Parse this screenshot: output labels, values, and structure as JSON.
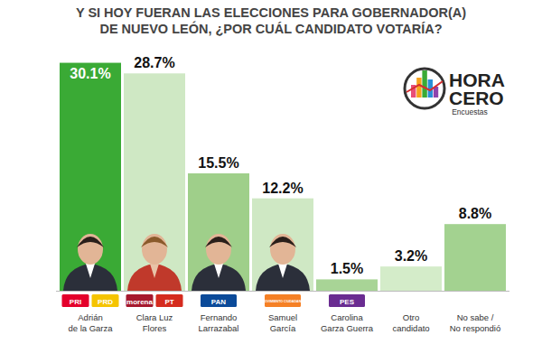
{
  "chart_data": {
    "type": "bar",
    "title": "Y SI HOY FUERAN LAS ELECCIONES PARA GOBERNADOR(A)\nDE NUEVO LEÓN, ¿POR CUÁL CANDIDATO VOTARÍA?",
    "categories": [
      "Adrián\nde la Garza",
      "Clara Luz\nFlores",
      "Fernando\nLarrazabal",
      "Samuel\nGarcía",
      "Carolina\nGarza Guerra",
      "Otro\ncandidato",
      "No sabe /\nNo respondió"
    ],
    "values": [
      30.1,
      28.7,
      15.5,
      12.2,
      1.5,
      3.2,
      8.8
    ],
    "value_labels": [
      "30.1%",
      "28.7%",
      "15.5%",
      "12.2%",
      "1.5%",
      "3.2%",
      "8.8%"
    ],
    "colors": [
      "#3aaa35",
      "#cfe8c4",
      "#9fcf8a",
      "#cfe8c4",
      "#a8d496",
      "#d4ecc9",
      "#a3d290"
    ],
    "ylim": [
      0,
      31
    ],
    "data_labels": true,
    "tick_labels": false,
    "grid": false,
    "parties": [
      [
        {
          "label": "PRI",
          "color": "#e4002b"
        },
        {
          "label": "PRD",
          "color": "#f5c400"
        }
      ],
      [
        {
          "label": "morena",
          "color": "#a6192e"
        },
        {
          "label": "PT",
          "color": "#d52b1e"
        }
      ],
      [
        {
          "label": "PAN",
          "color": "#0b4a99"
        }
      ],
      [
        {
          "label": "MOVIMIENTO CIUDADANO",
          "color": "#f58025"
        }
      ],
      [
        {
          "label": "PES",
          "color": "#6a2c91"
        }
      ],
      null,
      null
    ],
    "brand": [
      "HORA",
      "CERO",
      "Encuestas"
    ]
  }
}
